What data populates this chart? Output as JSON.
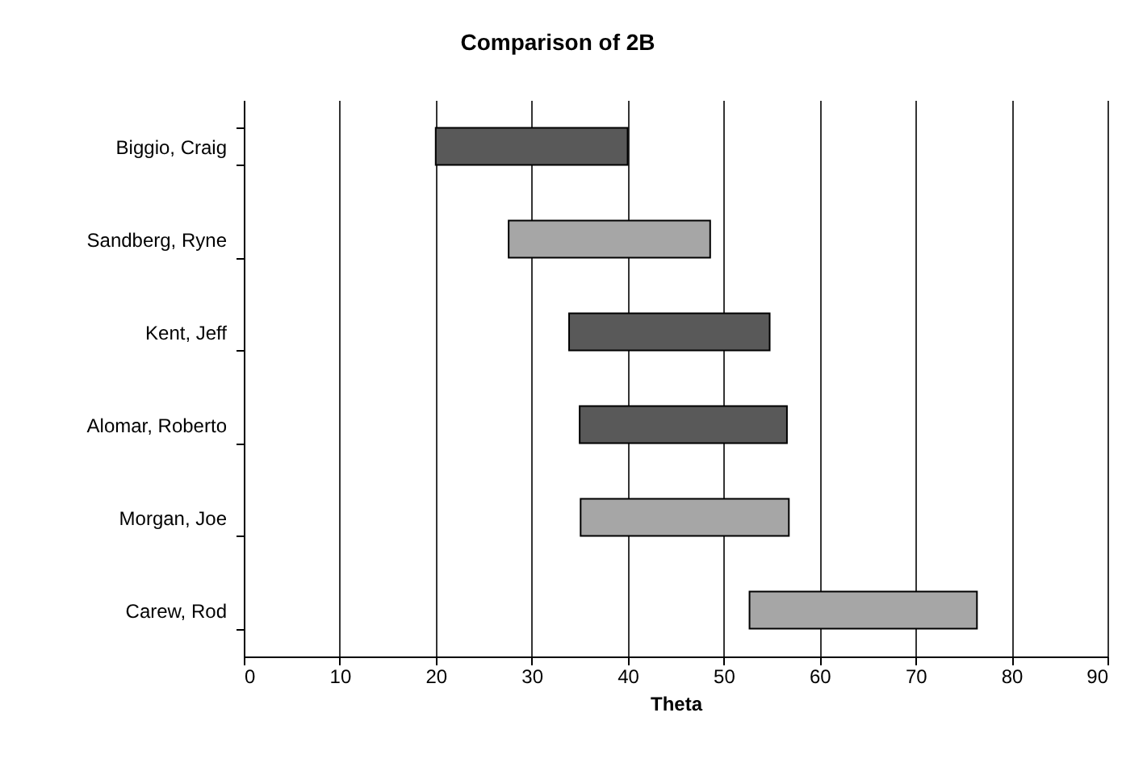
{
  "chart_data": {
    "type": "bar",
    "orientation": "horizontal",
    "title": "Comparison of 2B",
    "xlabel": "Theta",
    "categories": [
      "Biggio, Craig",
      "Sandberg, Ryne",
      "Kent, Jeff",
      "Alomar, Roberto",
      "Morgan, Joe",
      "Carew, Rod"
    ],
    "base": [
      20,
      27.6,
      33.9,
      35,
      35.1,
      52.7
    ],
    "values": [
      20,
      21,
      20.9,
      21.6,
      21.7,
      23.7
    ],
    "colors": [
      "#595959",
      "#a6a6a6",
      "#595959",
      "#595959",
      "#a6a6a6",
      "#a6a6a6"
    ],
    "xlim": [
      0,
      90
    ],
    "xticks": [
      0,
      10,
      20,
      30,
      40,
      50,
      60,
      70,
      80,
      90
    ],
    "grid": "x"
  }
}
